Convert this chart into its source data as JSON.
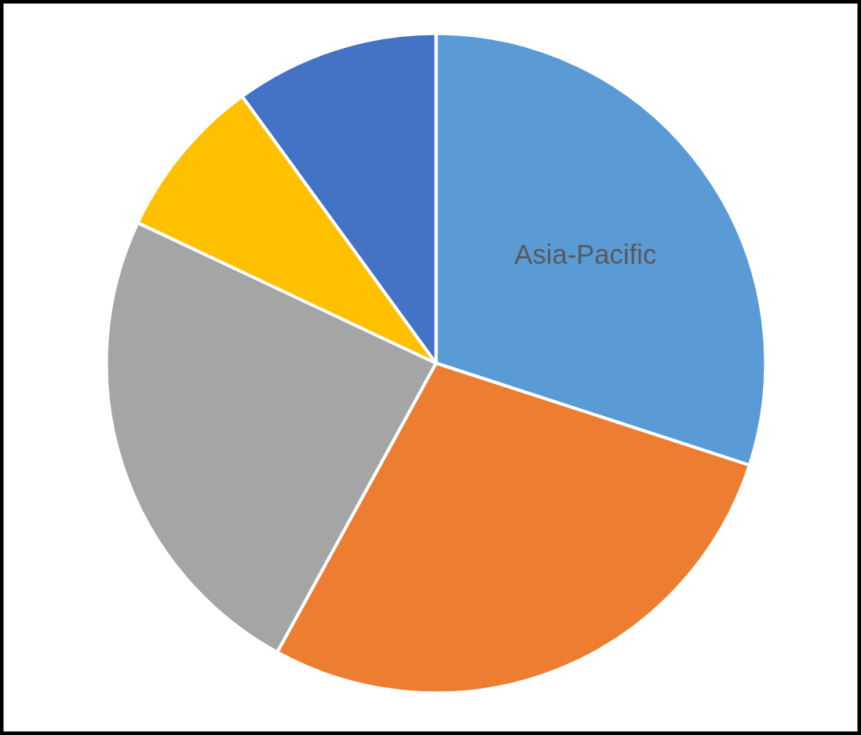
{
  "chart_data": {
    "type": "pie",
    "categories": [
      "Asia-Pacific",
      null,
      null,
      null,
      null
    ],
    "values": [
      30,
      28,
      24,
      8,
      10
    ],
    "colors": [
      "#5b9bd5",
      "#ed7d31",
      "#a5a5a5",
      "#ffc000",
      "#4472c4"
    ]
  }
}
